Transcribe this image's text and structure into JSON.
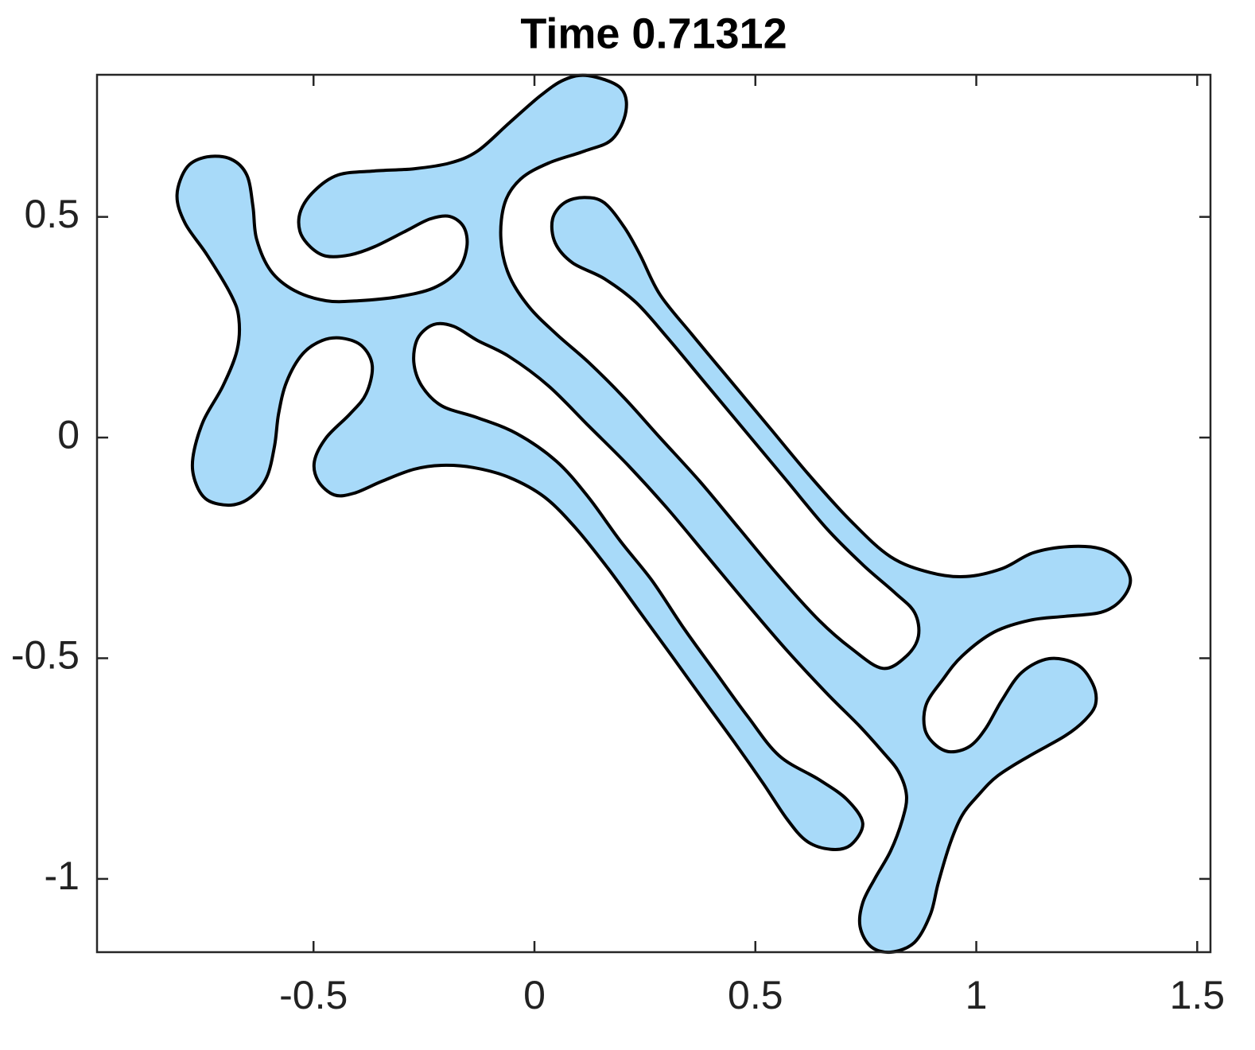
{
  "chart_data": {
    "type": "fill",
    "title": "Time 0.71312",
    "color": "#a8daf9",
    "edgecolor": "#000000",
    "xlim": [
      -0.99,
      1.53
    ],
    "ylim": [
      -1.166,
      0.822
    ],
    "xticks": [
      -0.5,
      0,
      0.5,
      1,
      1.5
    ],
    "yticks": [
      -1,
      -0.5,
      0,
      0.5
    ],
    "x": [
      0.122,
      0.194,
      0.207,
      0.176,
      0.113,
      0.032,
      -0.031,
      -0.067,
      -0.076,
      -0.058,
      -0.013,
      0.05,
      0.122,
      0.203,
      0.284,
      0.374,
      0.464,
      0.554,
      0.644,
      0.716,
      0.788,
      0.842,
      0.869,
      0.86,
      0.815,
      0.743,
      0.662,
      0.572,
      0.482,
      0.392,
      0.302,
      0.23,
      0.158,
      0.086,
      0.047,
      0.041,
      0.068,
      0.113,
      0.158,
      0.203,
      0.239,
      0.284,
      0.356,
      0.446,
      0.536,
      0.626,
      0.716,
      0.806,
      0.896,
      0.977,
      1.058,
      1.129,
      1.21,
      1.282,
      1.327,
      1.349,
      1.327,
      1.282,
      1.201,
      1.121,
      1.04,
      0.968,
      0.923,
      0.887,
      0.883,
      0.905,
      0.941,
      0.986,
      1.022,
      1.058,
      1.103,
      1.165,
      1.228,
      1.264,
      1.27,
      1.246,
      1.201,
      1.121,
      1.049,
      1.004,
      0.968,
      0.941,
      0.914,
      0.896,
      0.86,
      0.806,
      0.761,
      0.737,
      0.743,
      0.77,
      0.806,
      0.833,
      0.842,
      0.824,
      0.788,
      0.734,
      0.662,
      0.572,
      0.482,
      0.392,
      0.302,
      0.212,
      0.122,
      0.032,
      -0.058,
      -0.129,
      -0.183,
      -0.228,
      -0.264,
      -0.273,
      -0.255,
      -0.21,
      -0.129,
      -0.04,
      0.05,
      0.122,
      0.194,
      0.266,
      0.338,
      0.41,
      0.482,
      0.554,
      0.644,
      0.707,
      0.743,
      0.716,
      0.671,
      0.617,
      0.572,
      0.518,
      0.455,
      0.383,
      0.311,
      0.239,
      0.167,
      0.095,
      0.023,
      -0.058,
      -0.138,
      -0.21,
      -0.273,
      -0.345,
      -0.408,
      -0.453,
      -0.489,
      -0.498,
      -0.471,
      -0.417,
      -0.381,
      -0.367,
      -0.39,
      -0.435,
      -0.48,
      -0.525,
      -0.561,
      -0.579,
      -0.588,
      -0.606,
      -0.642,
      -0.687,
      -0.741,
      -0.768,
      -0.773,
      -0.75,
      -0.705,
      -0.673,
      -0.669,
      -0.687,
      -0.741,
      -0.791,
      -0.809,
      -0.786,
      -0.741,
      -0.687,
      -0.651,
      -0.637,
      -0.629,
      -0.597,
      -0.543,
      -0.471,
      -0.399,
      -0.309,
      -0.228,
      -0.174,
      -0.153,
      -0.16,
      -0.192,
      -0.237,
      -0.291,
      -0.363,
      -0.417,
      -0.471,
      -0.507,
      -0.531,
      -0.529,
      -0.498,
      -0.444,
      -0.363,
      -0.273,
      -0.192,
      -0.129,
      -0.058,
      0.014,
      0.068
    ],
    "y": [
      0.82,
      0.793,
      0.739,
      0.676,
      0.649,
      0.622,
      0.586,
      0.532,
      0.45,
      0.369,
      0.297,
      0.234,
      0.171,
      0.09,
      0.0,
      -0.099,
      -0.207,
      -0.315,
      -0.414,
      -0.477,
      -0.523,
      -0.495,
      -0.45,
      -0.396,
      -0.351,
      -0.288,
      -0.207,
      -0.099,
      0.009,
      0.117,
      0.225,
      0.306,
      0.36,
      0.396,
      0.441,
      0.495,
      0.532,
      0.544,
      0.532,
      0.477,
      0.414,
      0.324,
      0.234,
      0.126,
      0.018,
      -0.09,
      -0.189,
      -0.27,
      -0.306,
      -0.315,
      -0.297,
      -0.261,
      -0.247,
      -0.252,
      -0.279,
      -0.324,
      -0.369,
      -0.396,
      -0.405,
      -0.414,
      -0.441,
      -0.495,
      -0.55,
      -0.604,
      -0.658,
      -0.694,
      -0.712,
      -0.699,
      -0.658,
      -0.595,
      -0.532,
      -0.501,
      -0.514,
      -0.559,
      -0.604,
      -0.64,
      -0.676,
      -0.721,
      -0.766,
      -0.811,
      -0.856,
      -0.919,
      -1.009,
      -1.081,
      -1.144,
      -1.166,
      -1.153,
      -1.108,
      -1.054,
      -1.0,
      -0.937,
      -0.865,
      -0.811,
      -0.757,
      -0.712,
      -0.652,
      -0.58,
      -0.483,
      -0.378,
      -0.27,
      -0.162,
      -0.063,
      0.027,
      0.117,
      0.184,
      0.22,
      0.252,
      0.256,
      0.225,
      0.171,
      0.117,
      0.072,
      0.045,
      0.009,
      -0.054,
      -0.135,
      -0.234,
      -0.324,
      -0.432,
      -0.532,
      -0.631,
      -0.721,
      -0.775,
      -0.82,
      -0.874,
      -0.923,
      -0.933,
      -0.915,
      -0.865,
      -0.784,
      -0.694,
      -0.595,
      -0.495,
      -0.396,
      -0.297,
      -0.207,
      -0.135,
      -0.09,
      -0.068,
      -0.063,
      -0.072,
      -0.099,
      -0.126,
      -0.13,
      -0.099,
      -0.054,
      0.0,
      0.054,
      0.099,
      0.162,
      0.207,
      0.225,
      0.22,
      0.189,
      0.126,
      0.054,
      -0.018,
      -0.09,
      -0.135,
      -0.153,
      -0.141,
      -0.099,
      -0.045,
      0.036,
      0.117,
      0.198,
      0.27,
      0.324,
      0.414,
      0.486,
      0.55,
      0.613,
      0.636,
      0.631,
      0.595,
      0.523,
      0.45,
      0.378,
      0.333,
      0.31,
      0.31,
      0.319,
      0.339,
      0.378,
      0.432,
      0.477,
      0.501,
      0.495,
      0.468,
      0.432,
      0.414,
      0.411,
      0.432,
      0.468,
      0.514,
      0.559,
      0.595,
      0.604,
      0.609,
      0.622,
      0.649,
      0.712,
      0.775,
      0.811
    ]
  }
}
